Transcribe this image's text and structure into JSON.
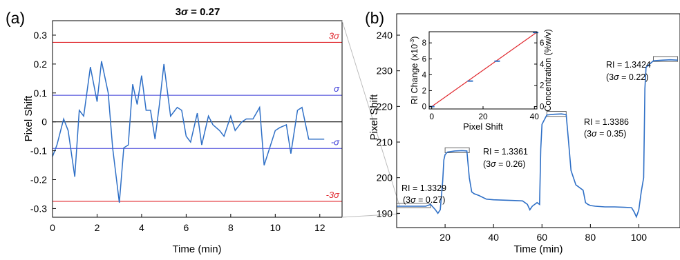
{
  "panels": {
    "a": {
      "panel_label": "(a)",
      "title_prefix": "3",
      "title_sigma": "σ",
      "title_suffix": " = 0.27"
    },
    "b": {
      "panel_label": "(b)"
    }
  },
  "chart_data": [
    {
      "id": "a",
      "type": "line",
      "xlabel": "Time (min)",
      "ylabel": "Pixel Shift",
      "xlim": [
        0,
        13
      ],
      "ylim": [
        -0.33,
        0.35
      ],
      "xticks": [
        0,
        2,
        4,
        6,
        8,
        10,
        12
      ],
      "yticks": [
        -0.3,
        -0.2,
        -0.1,
        0,
        0.1,
        0.2,
        0.3
      ],
      "ytick_labels": [
        "-0.3",
        "-0.2",
        "-0.1",
        "0",
        "0.1",
        "0.2",
        "0.3"
      ],
      "colors": {
        "series": "#2e6fc6",
        "three_sigma": "#e0282e",
        "one_sigma": "#3a3ad8",
        "zero": "#000000"
      },
      "series": [
        {
          "x": [
            0,
            0.2,
            0.5,
            0.7,
            1.0,
            1.2,
            1.4,
            1.7,
            2.0,
            2.2,
            2.5,
            2.7,
            3.0,
            3.2,
            3.4,
            3.6,
            3.8,
            4.0,
            4.2,
            4.4,
            4.6,
            4.8,
            5.0,
            5.3,
            5.6,
            5.8,
            6.0,
            6.2,
            6.5,
            6.7,
            7.0,
            7.2,
            7.5,
            7.7,
            8.0,
            8.2,
            8.5,
            8.7,
            9.0,
            9.3,
            9.5,
            10.0,
            10.2,
            10.5,
            10.7,
            11.0,
            11.2,
            11.5,
            11.7,
            12.0,
            12.2
          ],
          "y": [
            -0.12,
            -0.08,
            0.01,
            -0.03,
            -0.19,
            0.04,
            0.02,
            0.19,
            0.07,
            0.21,
            0.1,
            -0.09,
            -0.28,
            -0.09,
            -0.08,
            0.13,
            0.06,
            0.16,
            0.04,
            0.04,
            -0.06,
            0.06,
            0.2,
            0.02,
            0.05,
            0.04,
            -0.05,
            -0.07,
            0.03,
            -0.08,
            0.02,
            -0.01,
            -0.03,
            -0.05,
            0.02,
            -0.03,
            0.0,
            0.01,
            0.01,
            0.05,
            -0.15,
            -0.03,
            -0.02,
            -0.01,
            -0.11,
            0.04,
            0.05,
            -0.06,
            -0.06,
            -0.06,
            -0.06
          ]
        }
      ],
      "hlines": [
        {
          "y": 0.275,
          "label": "3σ",
          "color": "#e0282e"
        },
        {
          "y": 0.092,
          "label": "σ",
          "color": "#3a3ad8"
        },
        {
          "y": 0,
          "label": "",
          "color": "#000000"
        },
        {
          "y": -0.092,
          "label": "-σ",
          "color": "#3a3ad8"
        },
        {
          "y": -0.275,
          "label": "-3σ",
          "color": "#e0282e"
        }
      ]
    },
    {
      "id": "b",
      "type": "line",
      "xlabel": "Time (min)",
      "ylabel": "Pixel Shift",
      "xlim": [
        0,
        117
      ],
      "ylim": [
        186,
        246
      ],
      "xticks": [
        20,
        40,
        60,
        80,
        100
      ],
      "yticks": [
        190,
        200,
        210,
        220,
        230,
        240
      ],
      "colors": {
        "series": "#2e6fc6"
      },
      "series": [
        {
          "x": [
            0,
            3,
            6,
            9,
            12,
            14,
            16,
            17,
            18,
            19,
            19.5,
            20,
            21,
            24,
            27,
            29,
            30,
            31,
            32,
            34,
            37,
            40,
            44,
            48,
            52,
            54,
            55,
            56,
            57,
            58,
            59,
            59.5,
            60,
            62,
            65,
            68,
            70,
            71,
            72,
            74,
            77,
            78,
            79,
            80,
            82,
            86,
            90,
            94,
            97,
            98,
            99,
            100,
            101,
            102,
            102.5,
            103,
            106,
            110,
            113,
            116
          ],
          "y": [
            192,
            192,
            192,
            192,
            192,
            192.5,
            191,
            190,
            191,
            199,
            205,
            206.5,
            207.2,
            207.5,
            207.6,
            207.5,
            200,
            196,
            195.5,
            195,
            194,
            193.8,
            193.7,
            193.6,
            193.5,
            192.5,
            191,
            192,
            192.5,
            193,
            192.5,
            208,
            215,
            217.6,
            217.8,
            217.9,
            217.7,
            210,
            202,
            198,
            196.5,
            193,
            192.5,
            192.2,
            192,
            191.8,
            191.8,
            191.7,
            191.6,
            190.5,
            189,
            191,
            196,
            200,
            225,
            231,
            232.8,
            233,
            233.1,
            233
          ]
        }
      ],
      "boxes": [
        {
          "x0": 0,
          "x1": 14,
          "y0": 191.6,
          "y1": 192.8
        },
        {
          "x0": 20,
          "x1": 30,
          "y0": 207,
          "y1": 208.4
        },
        {
          "x0": 62,
          "x1": 70,
          "y0": 217.2,
          "y1": 218.6
        },
        {
          "x0": 106,
          "x1": 116,
          "y0": 232.6,
          "y1": 234
        }
      ],
      "annotations": [
        {
          "line1": "RI = 1.3329",
          "line2_prefix": "(3",
          "line2_sigma": "σ",
          "line2_suffix": " = 0.27)"
        },
        {
          "line1": "RI = 1.3361",
          "line2_prefix": "(3",
          "line2_sigma": "σ",
          "line2_suffix": " = 0.26)"
        },
        {
          "line1": "RI = 1.3386",
          "line2_prefix": "(3",
          "line2_sigma": "σ",
          "line2_suffix": " = 0.35)"
        },
        {
          "line1": "RI = 1.3424",
          "line2_prefix": "(3",
          "line2_sigma": "σ",
          "line2_suffix": " = 0.22)"
        }
      ]
    },
    {
      "id": "b-inset",
      "type": "scatter",
      "xlabel": "Pixel Shift",
      "ylabel_left": "RI Change (x10",
      "ylabel_left_sup": "-3",
      "ylabel_left_end": ")",
      "ylabel_right": "Concentration (%w/v)",
      "xlim": [
        -1,
        41
      ],
      "ylim": [
        -0.3,
        9.4
      ],
      "xticks": [
        0,
        20,
        40
      ],
      "yticks": [
        0,
        2,
        4,
        6,
        8
      ],
      "yticks_right": [
        0,
        2,
        4,
        6
      ],
      "right_per_left": 0.75,
      "colors": {
        "fit": "#e0282e",
        "points": "#2e6fc6"
      },
      "points": {
        "x": [
          0,
          15,
          25.5,
          40.5
        ],
        "y": [
          0,
          3.2,
          5.7,
          9.3
        ]
      },
      "fit": {
        "x": [
          0,
          41
        ],
        "y": [
          0,
          9.35
        ]
      }
    }
  ]
}
